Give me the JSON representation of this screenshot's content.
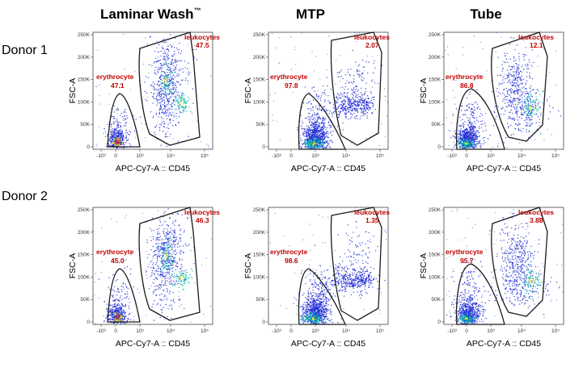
{
  "column_titles": [
    {
      "text": "Laminar Wash",
      "sup": "™"
    },
    {
      "text": "MTP",
      "sup": ""
    },
    {
      "text": "Tube",
      "sup": ""
    }
  ],
  "row_labels": [
    "Donor 1",
    "Donor 2"
  ],
  "colors": {
    "gate_label": "#c00000",
    "gate_line": "#1a1a1a",
    "density_low": "#1f2bd6",
    "density_mid": "#00b7a8",
    "density_high": "#f0e010",
    "density_peak": "#e8421a"
  },
  "chart_data": [
    {
      "type": "scatter",
      "donor": "Donor 1",
      "condition": "Laminar Wash",
      "xlabel": "APC-Cy7-A :: CD45",
      "ylabel": "FSC-A",
      "xticks": [
        "-10³",
        "0",
        "10³",
        "10⁴",
        "10⁵"
      ],
      "yticks": [
        "0",
        "50K",
        "100K",
        "150K",
        "200K",
        "250K"
      ],
      "ylim": [
        0,
        262144
      ],
      "gates": [
        {
          "name": "erythrocyte",
          "value": "47.1"
        },
        {
          "name": "leukocytes",
          "value": "47.5"
        }
      ]
    },
    {
      "type": "scatter",
      "donor": "Donor 1",
      "condition": "MTP",
      "xlabel": "APC-Cy7-A :: CD45",
      "ylabel": "FSC-A",
      "xticks": [
        "-10³",
        "0",
        "10³",
        "10⁴",
        "10⁵"
      ],
      "yticks": [
        "0",
        "50K",
        "100K",
        "150K",
        "200K",
        "250K"
      ],
      "ylim": [
        0,
        262144
      ],
      "gates": [
        {
          "name": "erythrocyte",
          "value": "97.8"
        },
        {
          "name": "leukocytes",
          "value": "2.07"
        }
      ]
    },
    {
      "type": "scatter",
      "donor": "Donor 1",
      "condition": "Tube",
      "xlabel": "APC-Cy7-A :: CD45",
      "ylabel": "FSC-A",
      "xticks": [
        "-10³",
        "0",
        "10³",
        "10⁴",
        "10⁵"
      ],
      "yticks": [
        "0",
        "50K",
        "100K",
        "150K",
        "200K",
        "250K"
      ],
      "ylim": [
        0,
        262144
      ],
      "gates": [
        {
          "name": "erythrocyte",
          "value": "86.8"
        },
        {
          "name": "leukocytes",
          "value": "12.1"
        }
      ]
    },
    {
      "type": "scatter",
      "donor": "Donor 2",
      "condition": "Laminar Wash",
      "xlabel": "APC-Cy7-A :: CD45",
      "ylabel": "FSC-A",
      "xticks": [
        "-10³",
        "0",
        "10³",
        "10⁴",
        "10⁵"
      ],
      "yticks": [
        "0",
        "50K",
        "100K",
        "150K",
        "200K",
        "250K"
      ],
      "ylim": [
        0,
        262144
      ],
      "gates": [
        {
          "name": "erythrocyte",
          "value": "45.0"
        },
        {
          "name": "leukocytes",
          "value": "46.3"
        }
      ]
    },
    {
      "type": "scatter",
      "donor": "Donor 2",
      "condition": "MTP",
      "xlabel": "APC-Cy7-A :: CD45",
      "ylabel": "FSC-A",
      "xticks": [
        "-10³",
        "0",
        "10³",
        "10⁴",
        "10⁵"
      ],
      "yticks": [
        "0",
        "50K",
        "100K",
        "150K",
        "200K",
        "250K"
      ],
      "ylim": [
        0,
        262144
      ],
      "gates": [
        {
          "name": "erythrocyte",
          "value": "98.6"
        },
        {
          "name": "leukocytes",
          "value": "1.35"
        }
      ]
    },
    {
      "type": "scatter",
      "donor": "Donor 2",
      "condition": "Tube",
      "xlabel": "APC-Cy7-A :: CD45",
      "ylabel": "FSC-A",
      "xticks": [
        "-10³",
        "0",
        "10³",
        "10⁴",
        "10⁵"
      ],
      "yticks": [
        "0",
        "50K",
        "100K",
        "150K",
        "200K",
        "250K"
      ],
      "ylim": [
        0,
        262144
      ],
      "gates": [
        {
          "name": "erythrocyte",
          "value": "95.7"
        },
        {
          "name": "leukocytes",
          "value": "3.88"
        }
      ]
    }
  ]
}
